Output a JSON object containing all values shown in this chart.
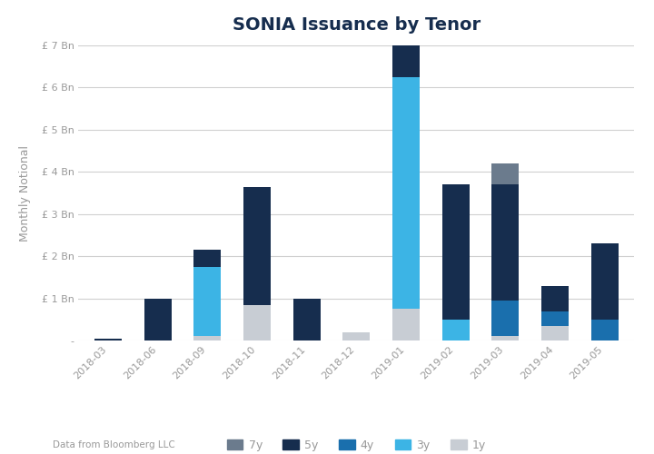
{
  "title": "SONIA Issuance by Tenor",
  "ylabel": "Monthly Notional",
  "categories": [
    "2018-03",
    "2018-06",
    "2018-09",
    "2018-10",
    "2018-11",
    "2018-12",
    "2019-01",
    "2019-02",
    "2019-03",
    "2019-04",
    "2019-05"
  ],
  "series": {
    "7y": [
      0.0,
      0.0,
      0.0,
      0.0,
      0.0,
      0.0,
      0.0,
      0.0,
      0.5,
      0.0,
      0.0
    ],
    "5y": [
      0.05,
      1.0,
      0.4,
      2.8,
      1.0,
      0.0,
      1.15,
      3.2,
      2.75,
      0.6,
      1.8
    ],
    "4y": [
      0.0,
      0.0,
      0.0,
      0.0,
      0.0,
      0.0,
      0.0,
      0.0,
      0.85,
      0.35,
      0.5
    ],
    "3y": [
      0.0,
      0.0,
      1.65,
      0.0,
      0.0,
      0.0,
      5.5,
      0.5,
      0.0,
      0.0,
      0.0
    ],
    "1y": [
      0.0,
      0.0,
      0.1,
      0.85,
      0.0,
      0.2,
      0.75,
      0.0,
      0.1,
      0.35,
      0.0
    ]
  },
  "colors": {
    "7y": "#6b7b8d",
    "5y": "#162d4e",
    "4y": "#1a6fad",
    "3y": "#3cb4e5",
    "1y": "#c8cdd4"
  },
  "ylim": [
    0,
    7
  ],
  "yticks": [
    0,
    1,
    2,
    3,
    4,
    5,
    6,
    7
  ],
  "ytick_labels": [
    "-",
    "£ 1 Bn",
    "£ 2 Bn",
    "£ 3 Bn",
    "£ 4 Bn",
    "£ 5 Bn",
    "£ 6 Bn",
    "£ 7 Bn"
  ],
  "legend_order": [
    "7y",
    "5y",
    "4y",
    "3y",
    "1y"
  ],
  "footnote": "Data from Bloomberg LLC",
  "background_color": "#ffffff",
  "grid_color": "#d0d0d0",
  "title_color": "#162d4e",
  "tick_color": "#999999",
  "title_fontsize": 14,
  "tick_fontsize": 8,
  "ylabel_fontsize": 9
}
